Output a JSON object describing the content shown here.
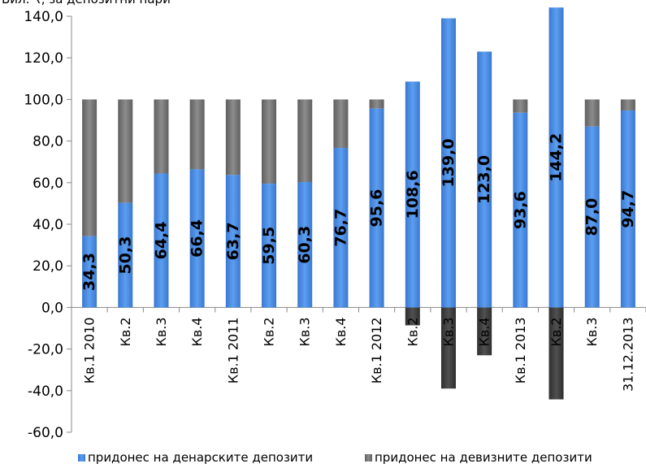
{
  "chart_data": {
    "type": "bar",
    "stacked": true,
    "ylabel": "Бил. ₹, за депозитни пари",
    "ylim": [
      -60,
      140
    ],
    "ytick_step": 20,
    "ytick_labels": [
      "-60,0",
      "-40,0",
      "-20,0",
      "0,0",
      "20,0",
      "40,0",
      "60,0",
      "80,0",
      "100,0",
      "120,0",
      "140,0"
    ],
    "grid": false,
    "legend_position": "bottom",
    "categories": [
      "Кв.1 2010",
      "Кв.2",
      "Кв.3",
      "Кв.4",
      "Кв.1 2011",
      "Кв.2",
      "Кв.3",
      "Кв.4",
      "Кв.1 2012",
      "Кв.2",
      "Кв.3",
      "Кв.4",
      "Кв.1 2013",
      "Кв.2",
      "Кв.3",
      "31.12.2013"
    ],
    "series": [
      {
        "name": "придонес на денарските депозити",
        "color": "#4a8fe0",
        "values": [
          34.3,
          50.3,
          64.4,
          66.4,
          63.7,
          59.5,
          60.3,
          76.7,
          95.6,
          108.6,
          139.0,
          123.0,
          93.6,
          144.2,
          87.0,
          94.7
        ],
        "data_labels": [
          "34,3",
          "50,3",
          "64,4",
          "66,4",
          "63,7",
          "59,5",
          "60,3",
          "76,7",
          "95,6",
          "108,6",
          "139,0",
          "123,0",
          "93,6",
          "144,2",
          "87,0",
          "94,7"
        ]
      },
      {
        "name": "придонес на девизните депозити",
        "color": "#7f7f7f",
        "values": [
          65.7,
          49.7,
          35.6,
          33.6,
          36.3,
          40.5,
          39.7,
          23.3,
          4.4,
          -8.6,
          -39.0,
          -23.0,
          6.4,
          -44.2,
          13.0,
          5.3
        ]
      }
    ]
  }
}
